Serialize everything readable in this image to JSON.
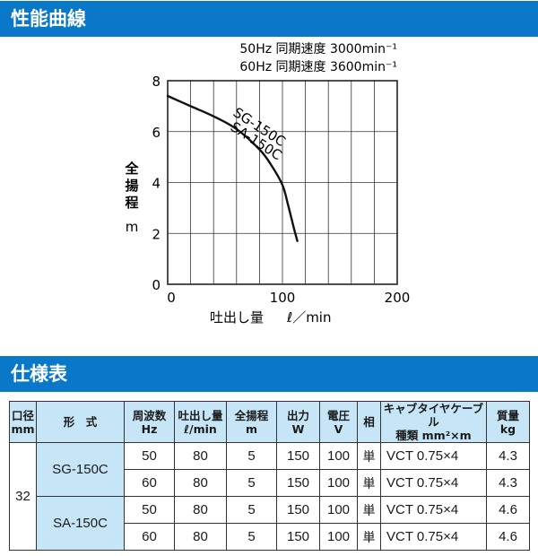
{
  "sections": {
    "curve_title": "性能曲線",
    "spec_title": "仕様表"
  },
  "chart_data": {
    "type": "line",
    "annotations": [
      "50Hz 同期速度 3000min⁻¹",
      "60Hz 同期速度 3600min⁻¹"
    ],
    "ylabel_chars": [
      "全",
      "揚",
      "程"
    ],
    "ylabel_unit": "m",
    "xlabel": "吐出し量",
    "xlabel_unit": "ℓ／min",
    "xlim": [
      0,
      200
    ],
    "ylim": [
      0,
      8
    ],
    "xticks": [
      0,
      100,
      200
    ],
    "yticks": [
      0,
      2,
      4,
      6,
      8
    ],
    "x_gridlines": [
      0,
      20,
      40,
      60,
      80,
      100,
      120,
      140,
      160,
      180,
      200
    ],
    "y_gridlines": [
      0,
      2,
      4,
      6,
      8
    ],
    "grid": true,
    "series": [
      {
        "labels": [
          "SG-150C",
          "SA-150C"
        ],
        "x": [
          0,
          20,
          40,
          60,
          80,
          90,
          100,
          105,
          110,
          113
        ],
        "y": [
          7.4,
          7.0,
          6.6,
          6.1,
          5.3,
          4.7,
          3.9,
          3.1,
          2.2,
          1.7
        ]
      }
    ]
  },
  "spec_table": {
    "headers": [
      [
        "口径",
        "mm"
      ],
      [
        "形　式",
        ""
      ],
      [
        "周波数",
        "Hz"
      ],
      [
        "吐出し量",
        "ℓ/min"
      ],
      [
        "全揚程",
        "m"
      ],
      [
        "出力",
        "W"
      ],
      [
        "電圧",
        "V"
      ],
      [
        "相",
        ""
      ],
      [
        "キャブタイヤケーブル",
        "種類 mm²×m"
      ],
      [
        "質量",
        "kg"
      ]
    ],
    "bore": "32",
    "models": [
      {
        "name": "SG-150C",
        "rows": [
          {
            "hz": "50",
            "flow": "80",
            "head": "5",
            "output": "150",
            "voltage": "100",
            "phase": "単",
            "cable": "VCT 0.75×4",
            "mass": "4.3"
          },
          {
            "hz": "60",
            "flow": "80",
            "head": "5",
            "output": "150",
            "voltage": "100",
            "phase": "単",
            "cable": "VCT 0.75×4",
            "mass": "4.3"
          }
        ]
      },
      {
        "name": "SA-150C",
        "rows": [
          {
            "hz": "50",
            "flow": "80",
            "head": "5",
            "output": "150",
            "voltage": "100",
            "phase": "単",
            "cable": "VCT 0.75×4",
            "mass": "4.6"
          },
          {
            "hz": "60",
            "flow": "80",
            "head": "5",
            "output": "150",
            "voltage": "100",
            "phase": "単",
            "cable": "VCT 0.75×4",
            "mass": "4.6"
          }
        ]
      }
    ]
  }
}
